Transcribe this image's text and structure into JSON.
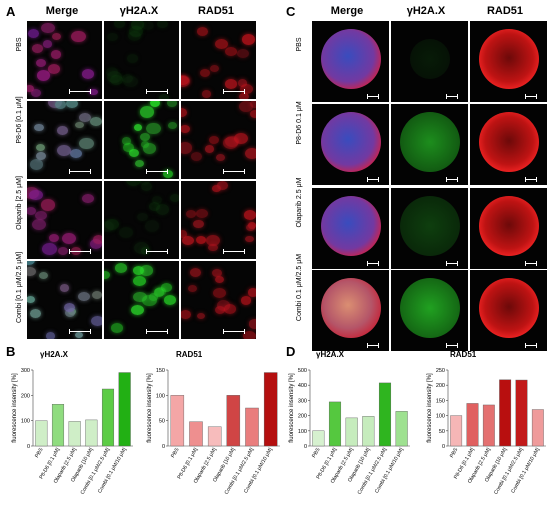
{
  "panels": {
    "A": "A",
    "B": "B",
    "C": "C",
    "D": "D"
  },
  "micro_A": {
    "columns": [
      "Merge",
      "γH2A.X",
      "RAD51"
    ],
    "rows": [
      "PBS",
      "P8-D6 [0.1 μM]",
      "Olaparib [2.5 μM]",
      "Combi [0.1 μM/2.5 μM]"
    ]
  },
  "micro_C": {
    "columns": [
      "Merge",
      "γH2A.X",
      "RAD51"
    ],
    "rows": [
      "PBS",
      "P8-D6 0.1 μM",
      "Olaparib 2.5 μM",
      "Combi 0.1 μM/2.5 μM"
    ]
  },
  "chart_data": [
    {
      "type": "bar",
      "title": "γH2A.X",
      "ylabel": "fluorescence insensity [%]",
      "categories": [
        "PBS",
        "P8-D6 [0.1 μM]",
        "Olaparib [2.5 μM]",
        "Olaparib [10 μM]",
        "Combi [0.1 μM/2.5 μM]",
        "Combi [0.1 μM/10 μM]"
      ],
      "values": [
        100,
        165,
        97,
        103,
        225,
        290
      ],
      "ylim": [
        0,
        300
      ],
      "yticks": [
        0,
        100,
        200,
        300
      ],
      "colors": [
        "#cfeec7",
        "#8fdc7f",
        "#cfeec7",
        "#cfeec7",
        "#5ccc45",
        "#22b014"
      ]
    },
    {
      "type": "bar",
      "title": "RAD51",
      "ylabel": "fluorescence insensity [%]",
      "categories": [
        "PBS",
        "P8-D6 [0.1 μM]",
        "Olaparib [2.5 μM]",
        "Olaparib [10 μM]",
        "Combi [0.1 μM/2.5 μM]",
        "Combi [0.1 μM/10 μM]"
      ],
      "values": [
        100,
        48,
        38,
        100,
        75,
        145
      ],
      "ylim": [
        0,
        150
      ],
      "yticks": [
        0,
        50,
        100,
        150
      ],
      "colors": [
        "#f4a6a6",
        "#ee8f8f",
        "#f7bcbc",
        "#d04545",
        "#e97d7d",
        "#b40f0f"
      ]
    },
    {
      "type": "bar",
      "title": "γH2A.X",
      "ylabel": "fluorescence insensity [%]",
      "categories": [
        "PBS",
        "P8-D6 [0.1 μM]",
        "Olaparib [2.5 μM]",
        "Olaparib [10 μM]",
        "Combi [0.1 μM/2.5 μM]",
        "Combi [0.1 μM/10 μM]"
      ],
      "values": [
        100,
        290,
        185,
        195,
        415,
        228
      ],
      "ylim": [
        0,
        500
      ],
      "yticks": [
        0,
        100,
        200,
        300,
        400,
        500
      ],
      "colors": [
        "#d6f1cf",
        "#55c83f",
        "#c6ecbd",
        "#c6ecbd",
        "#2fb51f",
        "#9ee190"
      ]
    },
    {
      "type": "bar",
      "title": "RAD51",
      "ylabel": "fluorescence insensity [%]",
      "categories": [
        "PBS",
        "P8-D6 [0.1 μM]",
        "Olaparib [2.5 μM]",
        "Olaparib [10 μM]",
        "Combi [0.1 μM/2.5 μM]",
        "Combi [0.1 μM/10 μM]"
      ],
      "values": [
        100,
        140,
        135,
        218,
        217,
        120
      ],
      "ylim": [
        0,
        250
      ],
      "yticks": [
        0,
        50,
        100,
        150,
        200,
        250
      ],
      "colors": [
        "#f6b6b6",
        "#e06060",
        "#e47070",
        "#b80f0f",
        "#c21a1a",
        "#ef9b9b"
      ]
    }
  ]
}
